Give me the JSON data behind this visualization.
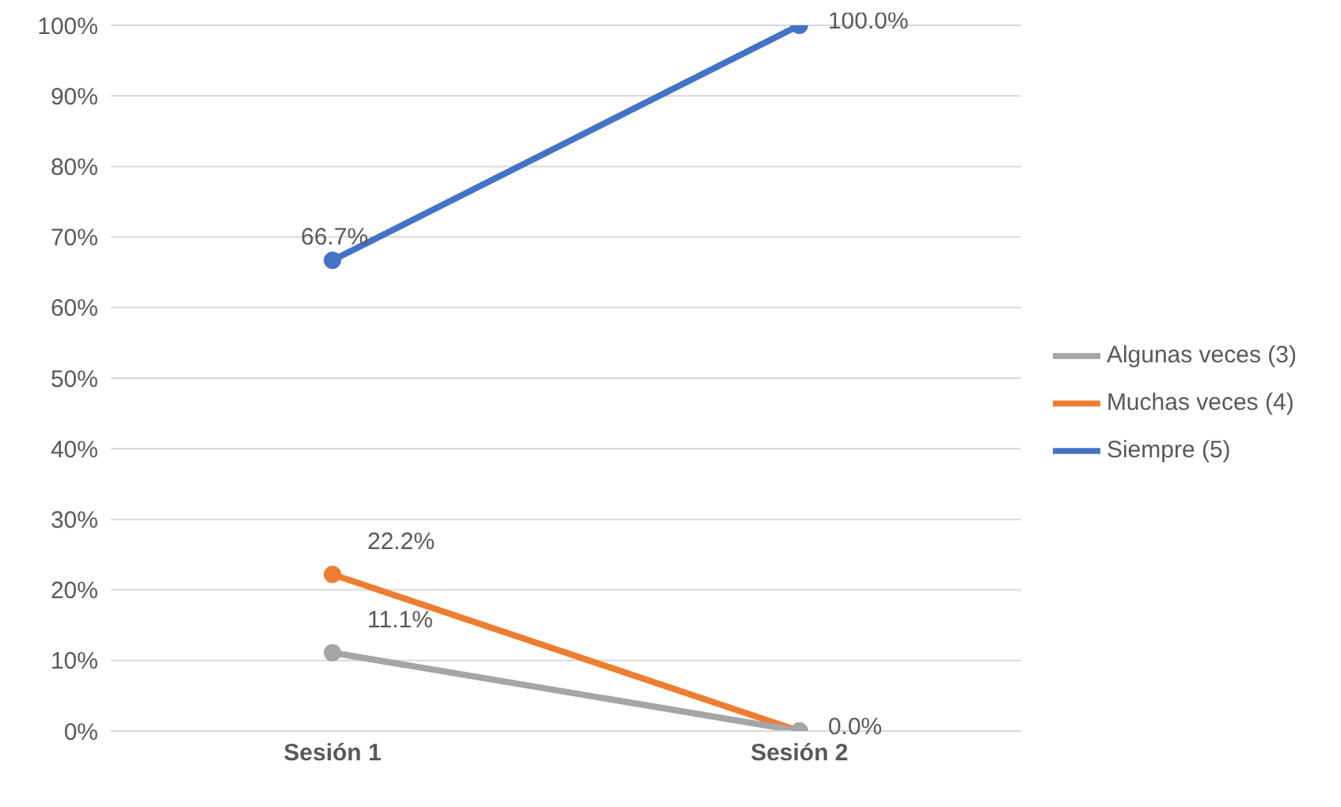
{
  "chart_data": {
    "type": "line",
    "categories": [
      "Sesión 1",
      "Sesión 2"
    ],
    "series": [
      {
        "name": "Siempre (5)",
        "color": "#4472c4",
        "values": [
          66.7,
          100.0
        ],
        "value_labels": [
          "66.7%",
          "100.0%"
        ]
      },
      {
        "name": "Muchas veces (4)",
        "color": "#ed7d31",
        "values": [
          22.2,
          0.0
        ],
        "value_labels": [
          "22.2%",
          null
        ]
      },
      {
        "name": "Algunas veces (3)",
        "color": "#a5a5a5",
        "values": [
          11.1,
          0.0
        ],
        "value_labels": [
          "11.1%",
          "0.0%"
        ]
      }
    ],
    "ylim": [
      0,
      100
    ],
    "yticks": [
      {
        "value": 0,
        "label": "0%"
      },
      {
        "value": 10,
        "label": "10%"
      },
      {
        "value": 20,
        "label": "20%"
      },
      {
        "value": 30,
        "label": "30%"
      },
      {
        "value": 40,
        "label": "40%"
      },
      {
        "value": 50,
        "label": "50%"
      },
      {
        "value": 60,
        "label": "60%"
      },
      {
        "value": 70,
        "label": "70%"
      },
      {
        "value": 80,
        "label": "80%"
      },
      {
        "value": 90,
        "label": "90%"
      },
      {
        "value": 100,
        "label": "100%"
      }
    ],
    "grid": "y",
    "legend": "right",
    "marker": "circle",
    "line_style": "solid"
  }
}
